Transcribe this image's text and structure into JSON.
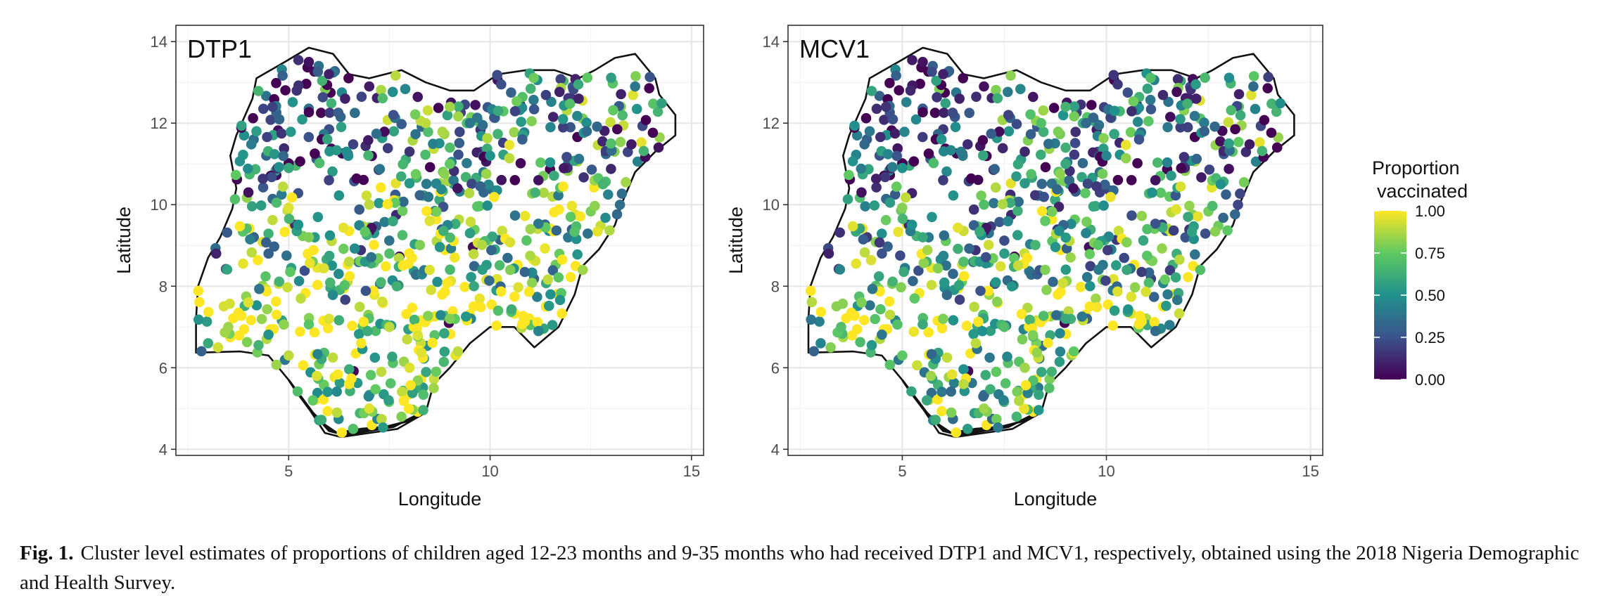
{
  "chart_data": [
    {
      "type": "scatter",
      "title": "DTP1",
      "xlabel": "Longitude",
      "ylabel": "Latitude",
      "xlim": [
        2.2,
        15.3
      ],
      "ylim": [
        3.85,
        14.4
      ],
      "xticks": [
        5,
        10,
        15
      ],
      "yticks": [
        4,
        6,
        8,
        10,
        12,
        14
      ],
      "grid": true,
      "color_variable": "Proportion vaccinated",
      "region_pattern": {
        "north": 0.45,
        "middle": 0.72,
        "south": 0.9
      },
      "points": [
        {
          "x": 5.5,
          "y": 13.5,
          "v": 0.05
        },
        {
          "x": 6.0,
          "y": 13.2,
          "v": 0.1
        },
        {
          "x": 5.2,
          "y": 12.8,
          "v": 0.15
        },
        {
          "x": 4.6,
          "y": 12.4,
          "v": 0.2
        },
        {
          "x": 4.2,
          "y": 11.8,
          "v": 0.55
        },
        {
          "x": 6.4,
          "y": 12.6,
          "v": 0.1
        },
        {
          "x": 7.0,
          "y": 12.9,
          "v": 0.08
        },
        {
          "x": 7.6,
          "y": 12.2,
          "v": 0.25
        },
        {
          "x": 8.4,
          "y": 12.0,
          "v": 0.9
        },
        {
          "x": 9.0,
          "y": 12.4,
          "v": 0.85
        },
        {
          "x": 9.5,
          "y": 12.0,
          "v": 0.4
        },
        {
          "x": 10.2,
          "y": 12.3,
          "v": 0.6
        },
        {
          "x": 10.8,
          "y": 11.6,
          "v": 0.3
        },
        {
          "x": 11.5,
          "y": 11.9,
          "v": 0.45
        },
        {
          "x": 12.4,
          "y": 11.8,
          "v": 0.35
        },
        {
          "x": 13.0,
          "y": 11.5,
          "v": 0.7
        },
        {
          "x": 13.6,
          "y": 12.9,
          "v": 0.4
        },
        {
          "x": 12.2,
          "y": 12.6,
          "v": 0.1
        },
        {
          "x": 8.0,
          "y": 11.3,
          "v": 0.15
        },
        {
          "x": 9.0,
          "y": 11.0,
          "v": 0.75
        },
        {
          "x": 10.0,
          "y": 11.2,
          "v": 0.5
        },
        {
          "x": 11.2,
          "y": 10.6,
          "v": 0.05
        },
        {
          "x": 5.0,
          "y": 10.9,
          "v": 0.6
        },
        {
          "x": 4.0,
          "y": 10.3,
          "v": 0.05
        },
        {
          "x": 6.0,
          "y": 10.6,
          "v": 0.2
        },
        {
          "x": 7.0,
          "y": 10.0,
          "v": 0.9
        },
        {
          "x": 8.5,
          "y": 9.6,
          "v": 0.95
        },
        {
          "x": 9.5,
          "y": 9.3,
          "v": 0.55
        },
        {
          "x": 11.0,
          "y": 9.4,
          "v": 0.85
        },
        {
          "x": 12.0,
          "y": 9.7,
          "v": 0.75
        },
        {
          "x": 12.8,
          "y": 10.5,
          "v": 0.65
        },
        {
          "x": 5.5,
          "y": 9.2,
          "v": 0.8
        },
        {
          "x": 4.5,
          "y": 8.8,
          "v": 0.3
        },
        {
          "x": 3.2,
          "y": 8.8,
          "v": 0.1
        },
        {
          "x": 6.5,
          "y": 8.6,
          "v": 0.9
        },
        {
          "x": 7.5,
          "y": 8.8,
          "v": 0.7
        },
        {
          "x": 8.5,
          "y": 8.4,
          "v": 0.95
        },
        {
          "x": 9.6,
          "y": 8.0,
          "v": 0.6
        },
        {
          "x": 10.5,
          "y": 8.4,
          "v": 0.8
        },
        {
          "x": 11.5,
          "y": 7.8,
          "v": 0.5
        },
        {
          "x": 12.3,
          "y": 8.4,
          "v": 0.85
        },
        {
          "x": 4.0,
          "y": 7.6,
          "v": 0.95
        },
        {
          "x": 4.7,
          "y": 7.3,
          "v": 1.0
        },
        {
          "x": 5.3,
          "y": 7.7,
          "v": 0.9
        },
        {
          "x": 3.5,
          "y": 7.0,
          "v": 0.85
        },
        {
          "x": 3.0,
          "y": 6.6,
          "v": 0.6
        },
        {
          "x": 6.0,
          "y": 7.2,
          "v": 0.95
        },
        {
          "x": 6.8,
          "y": 6.6,
          "v": 1.0
        },
        {
          "x": 7.5,
          "y": 7.0,
          "v": 0.9
        },
        {
          "x": 8.2,
          "y": 6.8,
          "v": 0.95
        },
        {
          "x": 9.0,
          "y": 7.2,
          "v": 0.8
        },
        {
          "x": 10.2,
          "y": 7.4,
          "v": 0.7
        },
        {
          "x": 11.2,
          "y": 6.9,
          "v": 0.45
        },
        {
          "x": 5.0,
          "y": 6.3,
          "v": 0.9
        },
        {
          "x": 5.7,
          "y": 5.8,
          "v": 0.95
        },
        {
          "x": 6.5,
          "y": 5.6,
          "v": 1.0
        },
        {
          "x": 7.3,
          "y": 5.9,
          "v": 0.9
        },
        {
          "x": 8.0,
          "y": 6.0,
          "v": 0.95
        },
        {
          "x": 8.6,
          "y": 5.5,
          "v": 0.85
        },
        {
          "x": 6.2,
          "y": 4.9,
          "v": 0.9
        },
        {
          "x": 7.0,
          "y": 5.0,
          "v": 0.95
        },
        {
          "x": 7.8,
          "y": 4.8,
          "v": 0.8
        },
        {
          "x": 6.6,
          "y": 4.5,
          "v": 0.7
        },
        {
          "x": 5.6,
          "y": 5.2,
          "v": 0.75
        },
        {
          "x": 9.2,
          "y": 6.4,
          "v": 0.9
        }
      ]
    },
    {
      "type": "scatter",
      "title": "MCV1",
      "xlabel": "Longitude",
      "ylabel": "Latitude",
      "xlim": [
        2.2,
        15.3
      ],
      "ylim": [
        3.85,
        14.4
      ],
      "xticks": [
        5,
        10,
        15
      ],
      "yticks": [
        4,
        6,
        8,
        10,
        12,
        14
      ],
      "grid": true,
      "color_variable": "Proportion vaccinated",
      "region_pattern": {
        "north": 0.38,
        "middle": 0.58,
        "south": 0.78
      },
      "points": [
        {
          "x": 5.5,
          "y": 13.5,
          "v": 0.05
        },
        {
          "x": 6.0,
          "y": 13.2,
          "v": 0.1
        },
        {
          "x": 5.2,
          "y": 12.8,
          "v": 0.12
        },
        {
          "x": 4.6,
          "y": 12.4,
          "v": 0.15
        },
        {
          "x": 4.2,
          "y": 11.8,
          "v": 0.4
        },
        {
          "x": 6.4,
          "y": 12.6,
          "v": 0.1
        },
        {
          "x": 7.0,
          "y": 12.9,
          "v": 0.05
        },
        {
          "x": 7.6,
          "y": 12.2,
          "v": 0.2
        },
        {
          "x": 8.4,
          "y": 12.0,
          "v": 0.7
        },
        {
          "x": 9.0,
          "y": 12.4,
          "v": 0.65
        },
        {
          "x": 9.5,
          "y": 12.0,
          "v": 0.35
        },
        {
          "x": 10.2,
          "y": 12.3,
          "v": 0.5
        },
        {
          "x": 10.8,
          "y": 11.6,
          "v": 0.25
        },
        {
          "x": 11.5,
          "y": 11.9,
          "v": 0.4
        },
        {
          "x": 12.4,
          "y": 11.8,
          "v": 0.3
        },
        {
          "x": 13.0,
          "y": 11.5,
          "v": 0.55
        },
        {
          "x": 13.6,
          "y": 12.9,
          "v": 0.35
        },
        {
          "x": 12.2,
          "y": 12.6,
          "v": 0.1
        },
        {
          "x": 8.0,
          "y": 11.3,
          "v": 0.12
        },
        {
          "x": 9.0,
          "y": 11.0,
          "v": 0.6
        },
        {
          "x": 10.0,
          "y": 11.2,
          "v": 0.45
        },
        {
          "x": 11.2,
          "y": 10.6,
          "v": 0.05
        },
        {
          "x": 5.0,
          "y": 10.9,
          "v": 0.5
        },
        {
          "x": 4.0,
          "y": 10.3,
          "v": 0.05
        },
        {
          "x": 6.0,
          "y": 10.6,
          "v": 0.18
        },
        {
          "x": 7.0,
          "y": 10.0,
          "v": 0.7
        },
        {
          "x": 8.5,
          "y": 9.6,
          "v": 0.75
        },
        {
          "x": 9.5,
          "y": 9.3,
          "v": 0.45
        },
        {
          "x": 11.0,
          "y": 9.4,
          "v": 0.7
        },
        {
          "x": 12.0,
          "y": 9.7,
          "v": 0.6
        },
        {
          "x": 12.8,
          "y": 10.5,
          "v": 0.5
        },
        {
          "x": 5.5,
          "y": 9.2,
          "v": 0.6
        },
        {
          "x": 4.5,
          "y": 8.8,
          "v": 0.25
        },
        {
          "x": 3.2,
          "y": 8.8,
          "v": 0.1
        },
        {
          "x": 6.5,
          "y": 8.6,
          "v": 0.7
        },
        {
          "x": 7.5,
          "y": 8.8,
          "v": 0.55
        },
        {
          "x": 8.5,
          "y": 8.4,
          "v": 0.8
        },
        {
          "x": 9.6,
          "y": 8.0,
          "v": 0.5
        },
        {
          "x": 10.5,
          "y": 8.4,
          "v": 0.6
        },
        {
          "x": 11.5,
          "y": 7.8,
          "v": 0.4
        },
        {
          "x": 12.3,
          "y": 8.4,
          "v": 0.7
        },
        {
          "x": 4.0,
          "y": 7.6,
          "v": 0.8
        },
        {
          "x": 4.7,
          "y": 7.3,
          "v": 0.9
        },
        {
          "x": 5.3,
          "y": 7.7,
          "v": 0.75
        },
        {
          "x": 3.5,
          "y": 7.0,
          "v": 0.7
        },
        {
          "x": 3.0,
          "y": 6.6,
          "v": 0.45
        },
        {
          "x": 6.0,
          "y": 7.2,
          "v": 0.8
        },
        {
          "x": 6.8,
          "y": 6.6,
          "v": 0.9
        },
        {
          "x": 7.5,
          "y": 7.0,
          "v": 0.7
        },
        {
          "x": 8.2,
          "y": 6.8,
          "v": 0.8
        },
        {
          "x": 9.0,
          "y": 7.2,
          "v": 0.6
        },
        {
          "x": 10.2,
          "y": 7.4,
          "v": 0.55
        },
        {
          "x": 11.2,
          "y": 6.9,
          "v": 0.35
        },
        {
          "x": 5.0,
          "y": 6.3,
          "v": 0.75
        },
        {
          "x": 5.7,
          "y": 5.8,
          "v": 0.85
        },
        {
          "x": 6.5,
          "y": 5.6,
          "v": 0.9
        },
        {
          "x": 7.3,
          "y": 5.9,
          "v": 0.75
        },
        {
          "x": 8.0,
          "y": 6.0,
          "v": 0.85
        },
        {
          "x": 8.6,
          "y": 5.5,
          "v": 0.7
        },
        {
          "x": 6.2,
          "y": 4.9,
          "v": 0.8
        },
        {
          "x": 7.0,
          "y": 5.0,
          "v": 0.85
        },
        {
          "x": 7.8,
          "y": 4.8,
          "v": 0.65
        },
        {
          "x": 6.6,
          "y": 4.5,
          "v": 0.55
        },
        {
          "x": 5.6,
          "y": 5.2,
          "v": 0.6
        },
        {
          "x": 9.2,
          "y": 6.4,
          "v": 0.75
        }
      ]
    }
  ],
  "legend": {
    "title_line1": "Proportion",
    "title_line2": "vaccinated",
    "placement": "right",
    "scale": "viridis",
    "breaks": [
      {
        "value": 1.0,
        "label": "1.00"
      },
      {
        "value": 0.75,
        "label": "0.75"
      },
      {
        "value": 0.5,
        "label": "0.50"
      },
      {
        "value": 0.25,
        "label": "0.25"
      },
      {
        "value": 0.0,
        "label": "0.00"
      }
    ],
    "colors": [
      "#440154",
      "#3b528b",
      "#21918c",
      "#5ec962",
      "#fde725"
    ]
  },
  "caption": {
    "label": "Fig. 1.",
    "text": "Cluster level estimates of proportions of children aged 12-23 months and 9-35 months who had received DTP1 and MCV1, respectively, obtained using the 2018 Nigeria Demographic and Health Survey."
  }
}
